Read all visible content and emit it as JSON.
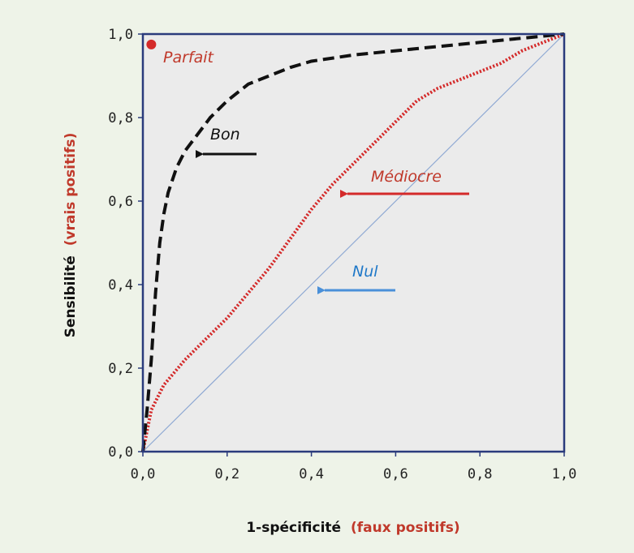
{
  "chart_data": {
    "type": "line",
    "title": "",
    "xlim": [
      0,
      1
    ],
    "ylim": [
      0,
      1
    ],
    "xticks": [
      "0,0",
      "0,2",
      "0,4",
      "0,6",
      "0,8",
      "1,0"
    ],
    "yticks": [
      "0,0",
      "0,2",
      "0,4",
      "0,6",
      "0,8",
      "1,0"
    ],
    "xlabel": {
      "main": "1-spécificité",
      "paren": "(faux positifs)"
    },
    "ylabel": {
      "main": "Sensibilité",
      "paren": "(vrais positifs)"
    },
    "series": [
      {
        "key": "bon",
        "color": "#111111",
        "style": "dashed",
        "x": [
          0.0,
          0.005,
          0.01,
          0.02,
          0.03,
          0.04,
          0.05,
          0.06,
          0.08,
          0.1,
          0.13,
          0.16,
          0.2,
          0.25,
          0.3,
          0.35,
          0.4,
          0.5,
          0.6,
          0.7,
          0.8,
          0.9,
          1.0
        ],
        "y": [
          0.0,
          0.05,
          0.1,
          0.22,
          0.38,
          0.5,
          0.57,
          0.62,
          0.68,
          0.72,
          0.76,
          0.8,
          0.84,
          0.88,
          0.9,
          0.92,
          0.935,
          0.95,
          0.96,
          0.97,
          0.98,
          0.99,
          1.0
        ]
      },
      {
        "key": "mediocre",
        "color": "#d42a2a",
        "style": "dotted",
        "x": [
          0.0,
          0.02,
          0.05,
          0.1,
          0.15,
          0.2,
          0.25,
          0.3,
          0.35,
          0.4,
          0.45,
          0.5,
          0.55,
          0.6,
          0.65,
          0.7,
          0.75,
          0.8,
          0.85,
          0.9,
          0.95,
          1.0
        ],
        "y": [
          0.0,
          0.1,
          0.16,
          0.22,
          0.27,
          0.32,
          0.38,
          0.44,
          0.51,
          0.58,
          0.64,
          0.69,
          0.74,
          0.79,
          0.84,
          0.87,
          0.89,
          0.91,
          0.93,
          0.96,
          0.98,
          1.0
        ]
      },
      {
        "key": "nul",
        "color": "#8fa9d3",
        "style": "solid",
        "x": [
          0.0,
          1.0
        ],
        "y": [
          0.0,
          1.0
        ]
      }
    ],
    "parfait_point": {
      "x": 0.02,
      "y": 0.975,
      "color": "#d42a2a"
    },
    "annotations": [
      {
        "key": "parfait",
        "text": "Parfait",
        "color": "#c0392b"
      },
      {
        "key": "bon",
        "text": "Bon",
        "color": "#111111"
      },
      {
        "key": "mediocre",
        "text": "Médiocre",
        "color": "#c0392b"
      },
      {
        "key": "nul",
        "text": "Nul",
        "color": "#1f78c8"
      }
    ]
  },
  "colors": {
    "plot_bg": "#ebebeb",
    "frame": "#2a3b7c",
    "page_bg": "#eef3e8",
    "paren": "#c0392b"
  }
}
